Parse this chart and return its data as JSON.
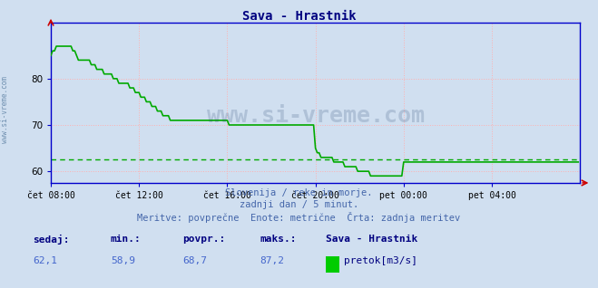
{
  "title": "Sava - Hrastnik",
  "title_color": "#000080",
  "bg_color": "#d0dff0",
  "plot_bg_color": "#d0dff0",
  "line_color": "#00aa00",
  "avg_line_color": "#00aa00",
  "avg_value": 62.5,
  "watermark": "www.si-vreme.com",
  "subtitle1": "Slovenija / reke in morje.",
  "subtitle2": "zadnji dan / 5 minut.",
  "subtitle3": "Meritve: povprečne  Enote: metrične  Črta: zadnja meritev",
  "footer_sedaj_label": "sedaj:",
  "footer_min_label": "min.:",
  "footer_povpr_label": "povpr.:",
  "footer_maks_label": "maks.:",
  "footer_sedaj": "62,1",
  "footer_min": "58,9",
  "footer_povpr": "68,7",
  "footer_maks": "87,2",
  "footer_station": "Sava - Hrastnik",
  "footer_legend_label": "pretok[m3/s]",
  "footer_color": "#000080",
  "footer_values_color": "#4466cc",
  "x_labels": [
    "čet 08:00",
    "čet 12:00",
    "čet 16:00",
    "čet 20:00",
    "pet 00:00",
    "pet 04:00"
  ],
  "x_ticks_pos": [
    0,
    48,
    96,
    144,
    192,
    240
  ],
  "yticks": [
    60,
    70,
    80
  ],
  "ylim": [
    57.5,
    92
  ],
  "xlim": [
    0,
    288
  ],
  "grid_color": "#ffb0b0",
  "axis_color": "#0000cc",
  "side_label": "www.si-vreme.com",
  "data_y": [
    85,
    86,
    86,
    87,
    87,
    87,
    87,
    87,
    87,
    87,
    87,
    87,
    86,
    86,
    85,
    84,
    84,
    84,
    84,
    84,
    84,
    84,
    83,
    83,
    83,
    82,
    82,
    82,
    82,
    81,
    81,
    81,
    81,
    81,
    80,
    80,
    80,
    79,
    79,
    79,
    79,
    79,
    79,
    78,
    78,
    78,
    77,
    77,
    77,
    76,
    76,
    76,
    75,
    75,
    75,
    74,
    74,
    74,
    73,
    73,
    73,
    72,
    72,
    72,
    72,
    71,
    71,
    71,
    71,
    71,
    71,
    71,
    71,
    71,
    71,
    71,
    71,
    71,
    71,
    71,
    71,
    71,
    71,
    71,
    71,
    71,
    71,
    71,
    71,
    71,
    71,
    71,
    71,
    71,
    71,
    71,
    71,
    70,
    70,
    70,
    70,
    70,
    70,
    70,
    70,
    70,
    70,
    70,
    70,
    70,
    70,
    70,
    70,
    70,
    70,
    70,
    70,
    70,
    70,
    70,
    70,
    70,
    70,
    70,
    70,
    70,
    70,
    70,
    70,
    70,
    70,
    70,
    70,
    70,
    70,
    70,
    70,
    70,
    70,
    70,
    70,
    70,
    70,
    70,
    65,
    64,
    64,
    63,
    63,
    63,
    63,
    63,
    63,
    63,
    62,
    62,
    62,
    62,
    62,
    62,
    61,
    61,
    61,
    61,
    61,
    61,
    61,
    60,
    60,
    60,
    60,
    60,
    60,
    60,
    59,
    59,
    59,
    59,
    59,
    59,
    59,
    59,
    59,
    59,
    59,
    59,
    59,
    59,
    59,
    59,
    59,
    59,
    62,
    62,
    62,
    62,
    62,
    62,
    62,
    62,
    62,
    62,
    62,
    62,
    62,
    62,
    62,
    62,
    62,
    62,
    62,
    62,
    62,
    62,
    62,
    62,
    62,
    62,
    62,
    62,
    62,
    62,
    62,
    62,
    62,
    62,
    62,
    62,
    62,
    62,
    62,
    62,
    62,
    62,
    62,
    62,
    62,
    62,
    62,
    62,
    62,
    62,
    62,
    62,
    62,
    62,
    62,
    62,
    62,
    62,
    62,
    62,
    62,
    62,
    62,
    62,
    62,
    62,
    62,
    62,
    62,
    62,
    62,
    62,
    62,
    62,
    62,
    62,
    62,
    62,
    62,
    62,
    62,
    62,
    62,
    62,
    62,
    62,
    62,
    62,
    62,
    62,
    62,
    62,
    62,
    62,
    62,
    62
  ]
}
